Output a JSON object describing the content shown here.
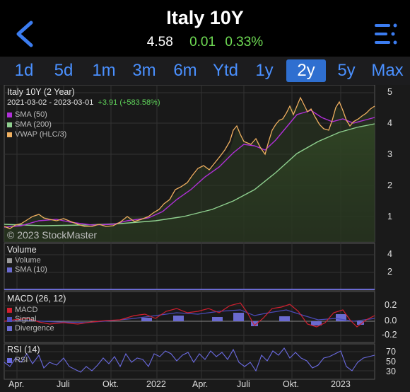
{
  "header": {
    "title": "Italy 10Y",
    "price": "4.58",
    "change": "0.01",
    "change_pct": "0.33%"
  },
  "tabs": [
    "1d",
    "5d",
    "1m",
    "3m",
    "6m",
    "Ytd",
    "1y",
    "2y",
    "5y",
    "Max"
  ],
  "active_tab": "2y",
  "chart": {
    "title": "Italy 10Y (2 Year)",
    "range": "2021-03-02 - 2023-03-01",
    "range_change": "+3.91 (+583.58%)",
    "legend": [
      "SMA (50)",
      "SMA (200)",
      "VWAP (HLC/3)"
    ],
    "copyright": "© 2023 StockMaster"
  },
  "volume_panel": {
    "title": "Volume",
    "legend": [
      "Volume",
      "SMA (10)"
    ],
    "axis": [
      "4",
      "2"
    ]
  },
  "macd_panel": {
    "title": "MACD (26, 12)",
    "legend": [
      "MACD",
      "Signal",
      "Divergence"
    ],
    "axis": [
      "0.2",
      "0.0",
      "-0.2"
    ]
  },
  "rsi_panel": {
    "title": "RSI (14)",
    "legend": [
      "RSI"
    ],
    "axis": [
      "70",
      "50",
      "30"
    ]
  },
  "colors": {
    "price": "#f0b060",
    "sma50": "#b030d8",
    "sma200": "#8fd08f",
    "macd": "#d02030",
    "signal": "#5050c0",
    "divergence": "#6a6ad0",
    "rsi": "#6a6ae0",
    "green": "#6fdc54",
    "accent": "#2f6fd0"
  },
  "chart_data": {
    "type": "line",
    "y_axis_ticks": [
      5,
      4,
      3,
      2,
      1
    ],
    "x_tick_labels": [
      "Apr.",
      "Juli",
      "Okt.",
      "2022",
      "Apr.",
      "Juli",
      "Okt.",
      "2023"
    ],
    "series": [
      {
        "name": "Italy 10Y",
        "values": [
          0.6,
          0.7,
          0.9,
          0.8,
          0.7,
          0.65,
          0.7,
          0.9,
          1.0,
          1.2,
          1.6,
          1.9,
          2.5,
          3.0,
          3.5,
          3.2,
          3.0,
          3.8,
          4.5,
          4.7,
          4.3,
          4.1,
          4.5,
          4.6
        ]
      },
      {
        "name": "SMA (50)",
        "values": [
          0.55,
          0.62,
          0.75,
          0.82,
          0.75,
          0.68,
          0.68,
          0.78,
          0.9,
          1.05,
          1.35,
          1.7,
          2.1,
          2.6,
          3.1,
          3.3,
          3.2,
          3.4,
          3.9,
          4.3,
          4.4,
          4.3,
          4.3,
          4.4
        ]
      },
      {
        "name": "SMA (200)",
        "values": [
          0.6,
          0.62,
          0.65,
          0.7,
          0.72,
          0.73,
          0.73,
          0.74,
          0.78,
          0.85,
          0.95,
          1.1,
          1.35,
          1.6,
          1.95,
          2.3,
          2.6,
          2.9,
          3.25,
          3.55,
          3.75,
          3.85,
          3.95,
          4.0
        ]
      }
    ]
  }
}
